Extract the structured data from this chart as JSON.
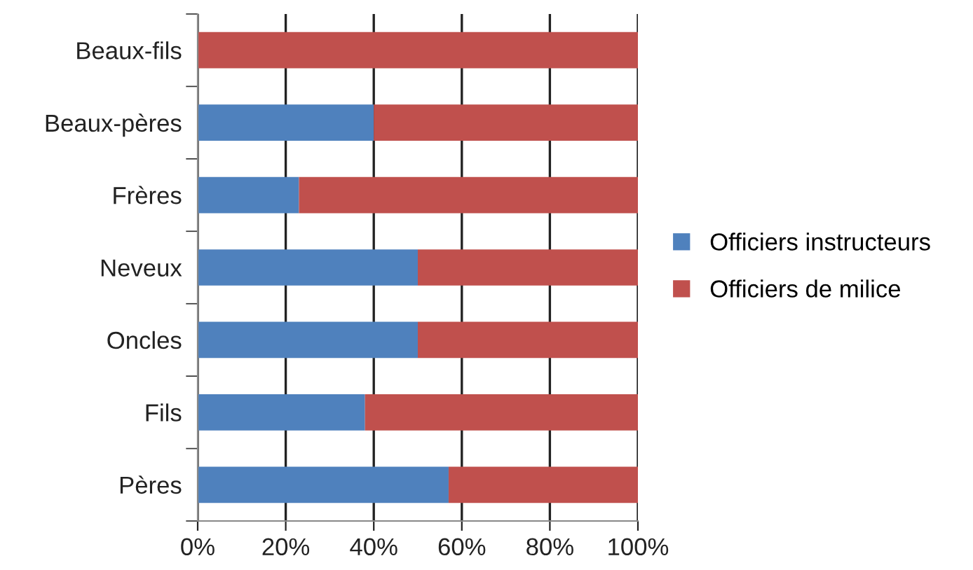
{
  "chart_data": {
    "type": "bar",
    "orientation": "horizontal",
    "stacked": true,
    "categories": [
      "Beaux-fils",
      "Beaux-pères",
      "Frères",
      "Neveux",
      "Oncles",
      "Fils",
      "Pères"
    ],
    "series": [
      {
        "name": "Officiers instructeurs",
        "color": "#4f81bd",
        "values": [
          0,
          40,
          23,
          50,
          50,
          38,
          57
        ]
      },
      {
        "name": "Officiers de milice",
        "color": "#c0504d",
        "values": [
          100,
          60,
          77,
          50,
          50,
          62,
          43
        ]
      }
    ],
    "xlim": [
      0,
      100
    ],
    "xticks": [
      {
        "value": 0,
        "label": "0%"
      },
      {
        "value": 20,
        "label": "20%"
      },
      {
        "value": 40,
        "label": "40%"
      },
      {
        "value": 60,
        "label": "60%"
      },
      {
        "value": 80,
        "label": "80%"
      },
      {
        "value": 100,
        "label": "100%"
      }
    ],
    "grid": "x",
    "legend": "right"
  }
}
